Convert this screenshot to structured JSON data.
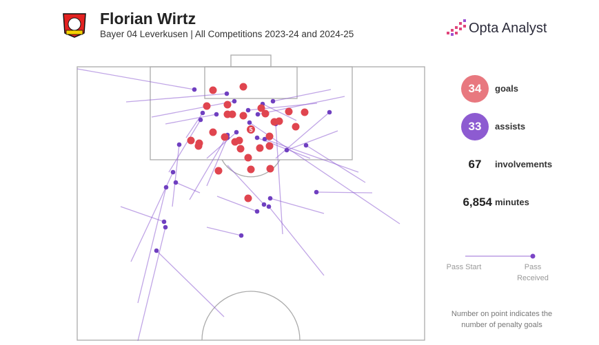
{
  "header": {
    "title": "Florian Wirtz",
    "subtitle": "Bayer 04 Leverkusen | All Competitions 2023-24 and 2024-25",
    "brand": "Opta Analyst"
  },
  "penalty_goals": 5,
  "stats": [
    {
      "value": 34,
      "label": "goals"
    },
    {
      "value": 33,
      "label": "assists"
    },
    {
      "value": 67,
      "label": "involvements"
    },
    {
      "value": "6,854",
      "label": "minutes"
    }
  ],
  "legend": {
    "start": "Pass Start",
    "end": "Pass Received"
  },
  "note": "Number on point indicates the number of penalty goals"
}
